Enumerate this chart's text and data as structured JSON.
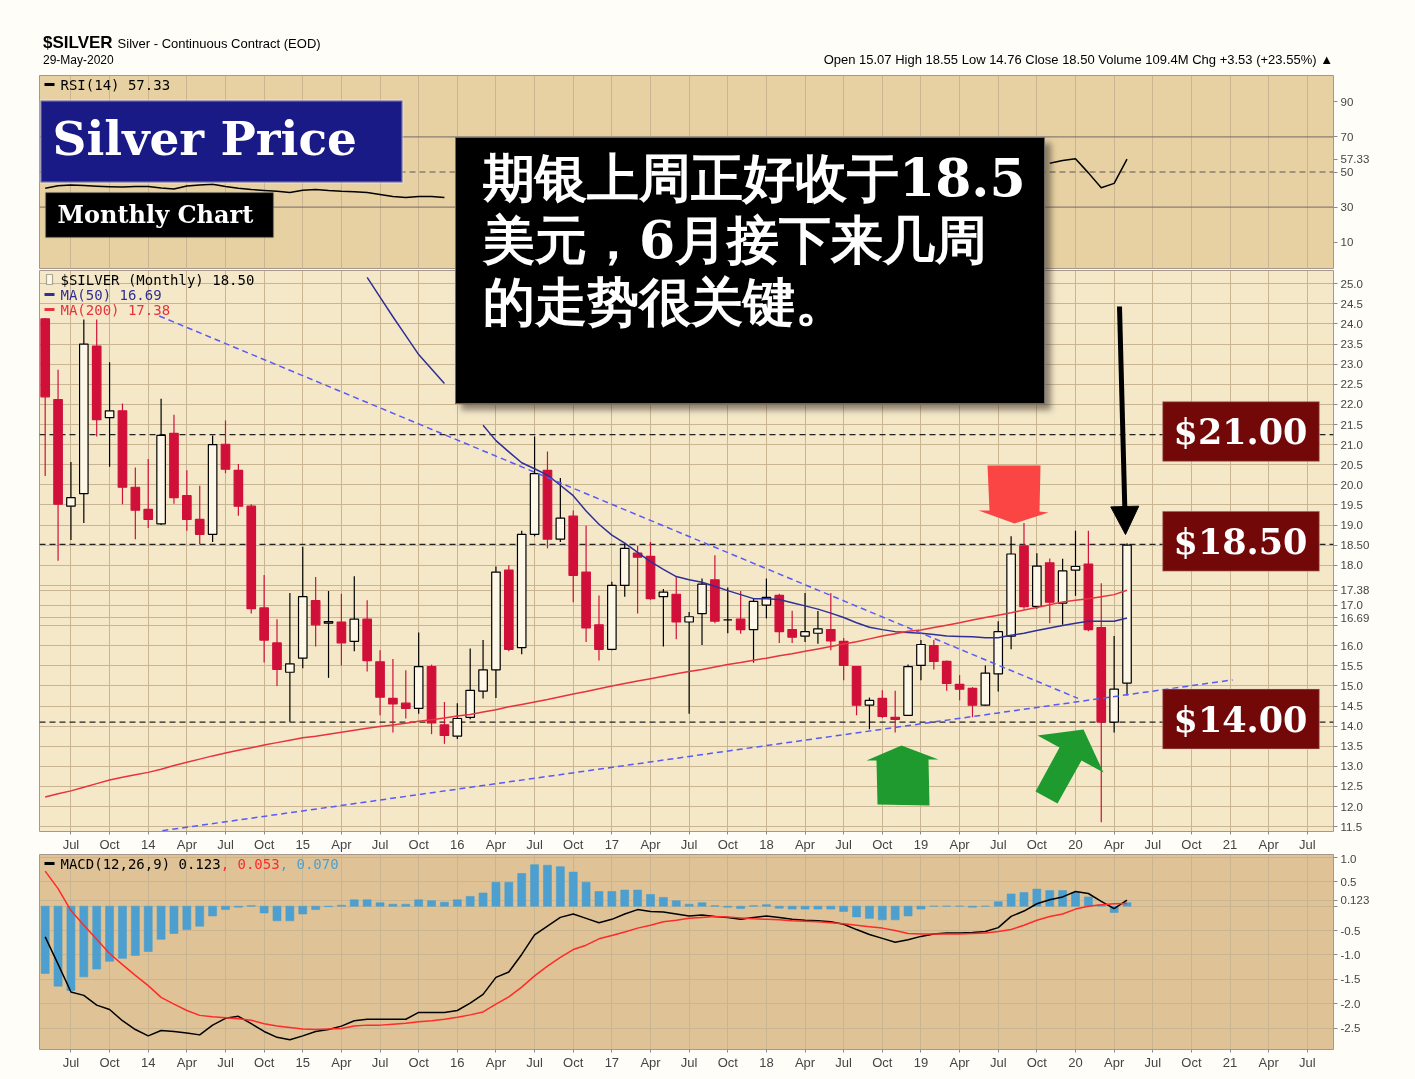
{
  "chart_data": [
    {
      "type": "line",
      "title": "Silver Price",
      "subtitle": "Monthly Chart",
      "annotations": [
        "$SILVER",
        "Silver - Continuous Contract (EOD)",
        "29-May-2020",
        "Open 15.07 High 18.55 Low 14.76 Close 18.50 Volume 109.4M Chg +3.53 (+23.55%) ▲",
        "期银上周正好收于18.5美元，6月接下来几周的走势很关键。"
      ],
      "x": [
        "2013-05",
        "2013-06",
        "2013-07",
        "2013-08",
        "2013-09",
        "2013-10",
        "2013-11",
        "2013-12",
        "2014-01",
        "2014-02",
        "2014-03",
        "2014-04",
        "2014-05",
        "2014-06",
        "2014-07",
        "2014-08",
        "2014-09",
        "2014-10",
        "2014-11",
        "2014-12",
        "2015-01",
        "2015-02",
        "2015-03",
        "2015-04",
        "2015-05",
        "2015-06",
        "2015-07",
        "2015-08",
        "2015-09",
        "2015-10",
        "2015-11",
        "2015-12",
        "2016-01",
        "2016-02",
        "2016-03",
        "2016-04",
        "2016-05",
        "2016-06",
        "2016-07",
        "2016-08",
        "2016-09",
        "2016-10",
        "2016-11",
        "2016-12",
        "2017-01",
        "2017-02",
        "2017-03",
        "2017-04",
        "2017-05",
        "2017-06",
        "2017-07",
        "2017-08",
        "2017-09",
        "2017-10",
        "2017-11",
        "2017-12",
        "2018-01",
        "2018-02",
        "2018-03",
        "2018-04",
        "2018-05",
        "2018-06",
        "2018-07",
        "2018-08",
        "2018-09",
        "2018-10",
        "2018-11",
        "2018-12",
        "2019-01",
        "2019-02",
        "2019-03",
        "2019-04",
        "2019-05",
        "2019-06",
        "2019-07",
        "2019-08",
        "2019-09",
        "2019-10",
        "2019-11",
        "2019-12",
        "2020-01",
        "2020-02",
        "2020-03",
        "2020-04",
        "2020-05"
      ],
      "series": [
        {
          "name": "RSI(14) 57.33",
          "color": "#000000",
          "values": [
            40.8,
            42.1,
            42.6,
            42.3,
            41.9,
            41.6,
            41.4,
            41.7,
            41.8,
            40.9,
            40.3,
            42.0,
            42.6,
            43.0,
            41.8,
            40.8,
            40.0,
            39.5,
            39.0,
            38.3,
            39.6,
            40.0,
            39.4,
            39.0,
            38.8,
            38.3,
            37.2,
            36.0,
            35.5,
            36.1,
            36.0,
            35.5,
            null,
            null,
            null,
            null,
            null,
            null,
            null,
            null,
            null,
            null,
            null,
            null,
            null,
            null,
            null,
            null,
            null,
            null,
            null,
            null,
            null,
            null,
            null,
            null,
            null,
            null,
            null,
            null,
            null,
            null,
            null,
            null,
            null,
            null,
            null,
            null,
            null,
            null,
            null,
            null,
            null,
            null,
            null,
            null,
            null,
            null,
            55.0,
            56.5,
            57.5,
            49.5,
            41.0,
            43.5,
            57.33
          ]
        }
      ],
      "xlim": [
        "2013-04-18",
        "2021-09-02"
      ],
      "xticks": [
        {
          "value": "2013-07",
          "label": null
        },
        {
          "value": "2013-10",
          "label": null
        },
        {
          "value": "2014-01",
          "label": null
        },
        {
          "value": "2014-04",
          "label": null
        },
        {
          "value": "2014-07",
          "label": null
        },
        {
          "value": "2014-10",
          "label": null
        },
        {
          "value": "2015-01",
          "label": null
        },
        {
          "value": "2015-04",
          "label": null
        },
        {
          "value": "2015-07",
          "label": null
        },
        {
          "value": "2015-10",
          "label": null
        },
        {
          "value": "2016-01",
          "label": null
        },
        {
          "value": "2016-04",
          "label": null
        },
        {
          "value": "2016-07",
          "label": null
        },
        {
          "value": "2016-10",
          "label": null
        },
        {
          "value": "2017-01",
          "label": null
        },
        {
          "value": "2017-04",
          "label": null
        },
        {
          "value": "2017-07",
          "label": null
        },
        {
          "value": "2017-10",
          "label": null
        },
        {
          "value": "2018-01",
          "label": null
        },
        {
          "value": "2018-04",
          "label": null
        },
        {
          "value": "2018-07",
          "label": null
        },
        {
          "value": "2018-10",
          "label": null
        },
        {
          "value": "2019-01",
          "label": null
        },
        {
          "value": "2019-04",
          "label": null
        },
        {
          "value": "2019-07",
          "label": null
        },
        {
          "value": "2019-10",
          "label": null
        },
        {
          "value": "2020-01",
          "label": null
        },
        {
          "value": "2020-04",
          "label": null
        },
        {
          "value": "2020-07",
          "label": null
        },
        {
          "value": "2020-10",
          "label": null
        },
        {
          "value": "2021-01",
          "label": null
        },
        {
          "value": "2021-04",
          "label": null
        },
        {
          "value": "2021-07",
          "label": null
        }
      ],
      "ylim": [
        -5,
        105
      ],
      "yticks": [
        10,
        30,
        50,
        57.33,
        70,
        90
      ],
      "ref_lines": [
        {
          "axis": "y",
          "value": 70,
          "color": "#8b7d74"
        },
        {
          "axis": "y",
          "value": 50,
          "color": "#8b7d74",
          "line_style": "dashed"
        },
        {
          "axis": "y",
          "value": 30,
          "color": "#8b7d74"
        }
      ],
      "tick_labels": "y",
      "grid": "x",
      "legend": "top left"
    },
    {
      "type": "candlestick",
      "annotations": [
        "$21.00",
        "$18.50",
        "$14.00"
      ],
      "x": [
        "2013-05",
        "2013-06",
        "2013-07",
        "2013-08",
        "2013-09",
        "2013-10",
        "2013-11",
        "2013-12",
        "2014-01",
        "2014-02",
        "2014-03",
        "2014-04",
        "2014-05",
        "2014-06",
        "2014-07",
        "2014-08",
        "2014-09",
        "2014-10",
        "2014-11",
        "2014-12",
        "2015-01",
        "2015-02",
        "2015-03",
        "2015-04",
        "2015-05",
        "2015-06",
        "2015-07",
        "2015-08",
        "2015-09",
        "2015-10",
        "2015-11",
        "2015-12",
        "2016-01",
        "2016-02",
        "2016-03",
        "2016-04",
        "2016-05",
        "2016-06",
        "2016-07",
        "2016-08",
        "2016-09",
        "2016-10",
        "2016-11",
        "2016-12",
        "2017-01",
        "2017-02",
        "2017-03",
        "2017-04",
        "2017-05",
        "2017-06",
        "2017-07",
        "2017-08",
        "2017-09",
        "2017-10",
        "2017-11",
        "2017-12",
        "2018-01",
        "2018-02",
        "2018-03",
        "2018-04",
        "2018-05",
        "2018-06",
        "2018-07",
        "2018-08",
        "2018-09",
        "2018-10",
        "2018-11",
        "2018-12",
        "2019-01",
        "2019-02",
        "2019-03",
        "2019-04",
        "2019-05",
        "2019-06",
        "2019-07",
        "2019-08",
        "2019-09",
        "2019-10",
        "2019-11",
        "2019-12",
        "2020-01",
        "2020-02",
        "2020-03",
        "2020-04",
        "2020-05"
      ],
      "series": [
        {
          "name": "$SILVER (Monthly) 18.50",
          "type": "candlestick",
          "color": "#000000",
          "colors": [
            "#d1103a",
            "#d1103a",
            "#000000",
            "#000000",
            "#d1103a",
            "#000000",
            "#d1103a",
            "#d1103a",
            "#d1103a",
            "#000000",
            "#d1103a",
            "#d1103a",
            "#d1103a",
            "#000000",
            "#d1103a",
            "#d1103a",
            "#d1103a",
            "#d1103a",
            "#d1103a",
            "#000000",
            "#000000",
            "#d1103a",
            "#000000",
            "#d1103a",
            "#000000",
            "#d1103a",
            "#d1103a",
            "#d1103a",
            "#d1103a",
            "#000000",
            "#d1103a",
            "#d1103a",
            "#000000",
            "#000000",
            "#000000",
            "#000000",
            "#d1103a",
            "#000000",
            "#000000",
            "#d1103a",
            "#000000",
            "#d1103a",
            "#d1103a",
            "#d1103a",
            "#000000",
            "#000000",
            "#d1103a",
            "#d1103a",
            "#000000",
            "#d1103a",
            "#000000",
            "#000000",
            "#d1103a",
            "#000000",
            "#d1103a",
            "#000000",
            "#000000",
            "#d1103a",
            "#d1103a",
            "#000000",
            "#000000",
            "#d1103a",
            "#d1103a",
            "#d1103a",
            "#000000",
            "#d1103a",
            "#d1103a",
            "#000000",
            "#000000",
            "#d1103a",
            "#d1103a",
            "#d1103a",
            "#d1103a",
            "#000000",
            "#000000",
            "#000000",
            "#d1103a",
            "#000000",
            "#d1103a",
            "#000000",
            "#000000",
            "#d1103a",
            "#d1103a",
            "#000000",
            "#000000"
          ],
          "ohlc": [
            [
              24.13,
              24.15,
              20.22,
              22.19
            ],
            [
              22.12,
              22.86,
              18.11,
              19.52
            ],
            [
              19.47,
              20.57,
              18.63,
              19.68
            ],
            [
              19.78,
              24.11,
              19.05,
              23.5
            ],
            [
              23.45,
              24.11,
              21.2,
              21.62
            ],
            [
              21.67,
              23.05,
              20.45,
              21.84
            ],
            [
              21.84,
              22.02,
              19.52,
              19.94
            ],
            [
              19.94,
              20.43,
              18.65,
              19.37
            ],
            [
              19.39,
              20.64,
              18.93,
              19.14
            ],
            [
              19.03,
              22.14,
              19.0,
              21.23
            ],
            [
              21.28,
              21.74,
              19.53,
              19.68
            ],
            [
              19.73,
              20.36,
              18.86,
              19.14
            ],
            [
              19.14,
              19.98,
              18.53,
              18.77
            ],
            [
              18.77,
              21.23,
              18.58,
              21.0
            ],
            [
              21.01,
              21.6,
              20.29,
              20.39
            ],
            [
              20.36,
              20.52,
              19.23,
              19.47
            ],
            [
              19.47,
              19.52,
              16.8,
              16.92
            ],
            [
              16.94,
              17.76,
              15.58,
              16.14
            ],
            [
              16.07,
              16.66,
              15.0,
              15.41
            ],
            [
              15.34,
              17.31,
              14.11,
              15.55
            ],
            [
              15.69,
              18.46,
              15.44,
              17.22
            ],
            [
              17.12,
              17.71,
              15.98,
              16.52
            ],
            [
              16.56,
              17.36,
              15.2,
              16.6
            ],
            [
              16.59,
              17.29,
              15.51,
              16.07
            ],
            [
              16.11,
              17.73,
              15.86,
              16.66
            ],
            [
              16.66,
              17.13,
              15.36,
              15.63
            ],
            [
              15.6,
              15.89,
              14.27,
              14.72
            ],
            [
              14.69,
              15.67,
              13.84,
              14.55
            ],
            [
              14.57,
              15.39,
              14.19,
              14.44
            ],
            [
              14.44,
              16.33,
              14.31,
              15.48
            ],
            [
              15.48,
              15.53,
              13.8,
              14.08
            ],
            [
              14.03,
              14.6,
              13.56,
              13.77
            ],
            [
              13.75,
              14.57,
              13.68,
              14.19
            ],
            [
              14.22,
              15.93,
              14.17,
              14.89
            ],
            [
              14.87,
              16.14,
              14.69,
              15.4
            ],
            [
              15.4,
              17.97,
              14.7,
              17.83
            ],
            [
              17.88,
              18.0,
              15.86,
              15.91
            ],
            [
              15.95,
              18.86,
              15.79,
              18.77
            ],
            [
              18.77,
              21.2,
              18.72,
              20.28
            ],
            [
              20.36,
              20.83,
              18.42,
              18.65
            ],
            [
              18.65,
              20.17,
              18.58,
              19.17
            ],
            [
              19.22,
              19.36,
              17.08,
              17.75
            ],
            [
              17.83,
              18.98,
              16.09,
              16.44
            ],
            [
              16.52,
              17.25,
              15.63,
              15.91
            ],
            [
              15.91,
              17.59,
              15.89,
              17.5
            ],
            [
              17.5,
              18.55,
              17.22,
              18.42
            ],
            [
              18.3,
              18.48,
              16.8,
              18.2
            ],
            [
              18.22,
              18.58,
              17.14,
              17.17
            ],
            [
              17.22,
              17.41,
              15.98,
              17.33
            ],
            [
              17.28,
              17.71,
              16.16,
              16.59
            ],
            [
              16.59,
              16.84,
              14.31,
              16.72
            ],
            [
              16.8,
              17.67,
              16.02,
              17.53
            ],
            [
              17.64,
              18.25,
              16.56,
              16.61
            ],
            [
              16.64,
              17.45,
              16.31,
              16.64
            ],
            [
              16.66,
              17.36,
              16.3,
              16.4
            ],
            [
              16.4,
              17.17,
              15.58,
              17.1
            ],
            [
              17.01,
              17.67,
              16.68,
              17.2
            ],
            [
              17.25,
              17.29,
              16.07,
              16.35
            ],
            [
              16.4,
              16.87,
              16.07,
              16.21
            ],
            [
              16.24,
              17.31,
              16.09,
              16.35
            ],
            [
              16.31,
              16.86,
              16.05,
              16.42
            ],
            [
              16.4,
              17.31,
              15.89,
              16.12
            ],
            [
              16.11,
              16.19,
              15.14,
              15.51
            ],
            [
              15.48,
              15.48,
              14.27,
              14.52
            ],
            [
              14.52,
              14.71,
              13.92,
              14.64
            ],
            [
              14.69,
              14.89,
              14.2,
              14.24
            ],
            [
              14.22,
              14.88,
              13.84,
              14.17
            ],
            [
              14.27,
              15.53,
              14.25,
              15.48
            ],
            [
              15.51,
              16.14,
              15.14,
              16.03
            ],
            [
              16.0,
              16.14,
              15.41,
              15.61
            ],
            [
              15.61,
              15.63,
              14.88,
              15.06
            ],
            [
              15.04,
              15.27,
              14.64,
              14.92
            ],
            [
              14.94,
              14.97,
              14.22,
              14.52
            ],
            [
              14.52,
              15.51,
              14.5,
              15.32
            ],
            [
              15.3,
              16.61,
              14.86,
              16.35
            ],
            [
              16.24,
              18.72,
              15.91,
              18.28
            ],
            [
              18.48,
              19.05,
              16.92,
              16.97
            ],
            [
              16.98,
              18.3,
              16.92,
              17.98
            ],
            [
              18.06,
              18.17,
              16.56,
              17.08
            ],
            [
              17.06,
              18.16,
              16.52,
              17.86
            ],
            [
              17.88,
              18.86,
              17.24,
              17.97
            ],
            [
              18.03,
              18.86,
              16.36,
              16.4
            ],
            [
              16.45,
              17.55,
              11.61,
              14.1
            ],
            [
              14.1,
              16.24,
              13.84,
              14.92
            ],
            [
              15.07,
              18.55,
              14.76,
              18.5
            ]
          ]
        },
        {
          "name": "MA(50) 16.69",
          "type": "line",
          "color": "#2f2f96",
          "values": [
            null,
            null,
            null,
            null,
            null,
            null,
            null,
            null,
            null,
            null,
            null,
            null,
            null,
            null,
            null,
            null,
            null,
            null,
            null,
            null,
            null,
            null,
            null,
            null,
            null,
            25.16,
            24.67,
            24.18,
            23.71,
            23.24,
            22.88,
            22.52,
            null,
            null,
            21.48,
            21.1,
            20.82,
            20.55,
            20.4,
            20.24,
            19.99,
            19.73,
            19.35,
            19.02,
            18.75,
            18.55,
            18.32,
            18.09,
            17.9,
            17.72,
            17.64,
            17.58,
            17.48,
            17.37,
            17.27,
            17.17,
            17.17,
            17.15,
            17.07,
            16.99,
            16.91,
            16.81,
            16.7,
            16.57,
            16.46,
            16.4,
            16.35,
            16.33,
            16.31,
            16.28,
            16.24,
            16.23,
            16.22,
            16.2,
            16.2,
            16.26,
            16.31,
            16.38,
            16.44,
            16.5,
            16.56,
            16.61,
            16.61,
            16.61,
            16.69
          ]
        },
        {
          "name": "MA(200) 17.38",
          "type": "line",
          "color": "#e8323c",
          "values": [
            12.24,
            12.32,
            12.39,
            12.48,
            12.57,
            12.66,
            12.73,
            12.79,
            12.85,
            12.93,
            13.02,
            13.1,
            13.18,
            13.26,
            13.33,
            13.4,
            13.46,
            13.53,
            13.59,
            13.65,
            13.71,
            13.75,
            13.8,
            13.85,
            13.9,
            13.95,
            13.99,
            14.03,
            14.07,
            14.12,
            14.16,
            14.2,
            14.25,
            14.29,
            14.35,
            14.41,
            14.48,
            14.54,
            14.6,
            14.66,
            14.73,
            14.8,
            14.86,
            14.93,
            15.0,
            15.06,
            15.12,
            15.18,
            15.24,
            15.3,
            15.36,
            15.41,
            15.47,
            15.53,
            15.58,
            15.64,
            15.69,
            15.75,
            15.8,
            15.86,
            15.92,
            15.98,
            16.04,
            16.1,
            16.17,
            16.24,
            16.3,
            16.36,
            16.39,
            16.45,
            16.51,
            16.57,
            16.64,
            16.7,
            16.76,
            16.82,
            16.89,
            16.95,
            17.02,
            17.09,
            17.13,
            17.17,
            17.22,
            17.27,
            17.38
          ]
        },
        {
          "type": "line",
          "color": "#5a5af7",
          "line_style": "dashed",
          "x": [
            "2014-01-27",
            "2020-01-07"
          ],
          "values": [
            24.2,
            14.69
          ]
        },
        {
          "type": "line",
          "color": "#5a5af7",
          "line_style": "dashed",
          "x": [
            "2014-02-04",
            "2021-01-07"
          ],
          "values": [
            11.4,
            15.15
          ]
        }
      ],
      "xlim": [
        "2013-04-18",
        "2021-09-02"
      ],
      "xticks": [
        {
          "value": "2013-07",
          "label": "Jul"
        },
        {
          "value": "2013-10",
          "label": "Oct"
        },
        {
          "value": "2014-01",
          "label": "14"
        },
        {
          "value": "2014-04",
          "label": "Apr"
        },
        {
          "value": "2014-07",
          "label": "Jul"
        },
        {
          "value": "2014-10",
          "label": "Oct"
        },
        {
          "value": "2015-01",
          "label": "15"
        },
        {
          "value": "2015-04",
          "label": "Apr"
        },
        {
          "value": "2015-07",
          "label": "Jul"
        },
        {
          "value": "2015-10",
          "label": "Oct"
        },
        {
          "value": "2016-01",
          "label": "16"
        },
        {
          "value": "2016-04",
          "label": "Apr"
        },
        {
          "value": "2016-07",
          "label": "Jul"
        },
        {
          "value": "2016-10",
          "label": "Oct"
        },
        {
          "value": "2017-01",
          "label": "17"
        },
        {
          "value": "2017-04",
          "label": "Apr"
        },
        {
          "value": "2017-07",
          "label": "Jul"
        },
        {
          "value": "2017-10",
          "label": "Oct"
        },
        {
          "value": "2018-01",
          "label": "18"
        },
        {
          "value": "2018-04",
          "label": "Apr"
        },
        {
          "value": "2018-07",
          "label": "Jul"
        },
        {
          "value": "2018-10",
          "label": "Oct"
        },
        {
          "value": "2019-01",
          "label": "19"
        },
        {
          "value": "2019-04",
          "label": "Apr"
        },
        {
          "value": "2019-07",
          "label": "Jul"
        },
        {
          "value": "2019-10",
          "label": "Oct"
        },
        {
          "value": "2020-01",
          "label": "20"
        },
        {
          "value": "2020-04",
          "label": "Apr"
        },
        {
          "value": "2020-07",
          "label": "Jul"
        },
        {
          "value": "2020-10",
          "label": "Oct"
        },
        {
          "value": "2021-01",
          "label": "21"
        },
        {
          "value": "2021-04",
          "label": "Apr"
        },
        {
          "value": "2021-07",
          "label": "Jul"
        }
      ],
      "ylim": [
        11.38,
        25.33
      ],
      "yticks": [
        11.5,
        {
          "value": 12,
          "label": "12.0"
        },
        12.5,
        {
          "value": 13,
          "label": "13.0"
        },
        13.5,
        {
          "value": 14,
          "label": "14.0"
        },
        14.5,
        {
          "value": 15,
          "label": "15.0"
        },
        15.5,
        {
          "value": 16,
          "label": "16.0"
        },
        {
          "value": 16.5,
          "label": null
        },
        16.69,
        {
          "value": 17,
          "label": "17.0"
        },
        17.38,
        {
          "value": 17.5,
          "label": null
        },
        {
          "value": 18,
          "label": "18.0"
        },
        {
          "value": 18.5,
          "label": "18.50"
        },
        {
          "value": 19,
          "label": "19.0"
        },
        19.5,
        {
          "value": 20,
          "label": "20.0"
        },
        20.5,
        {
          "value": 21,
          "label": "21.0"
        },
        21.5,
        {
          "value": 22,
          "label": "22.0"
        },
        22.5,
        {
          "value": 23,
          "label": "23.0"
        },
        23.5,
        {
          "value": 24,
          "label": "24.0"
        },
        24.5,
        {
          "value": 25,
          "label": "25.0"
        }
      ],
      "ref_lines": [
        {
          "axis": "y",
          "value": 21.25,
          "color": "#222222",
          "line_style": "dashed"
        },
        {
          "axis": "y",
          "value": 18.52,
          "color": "#222222",
          "line_style": "dashed"
        },
        {
          "axis": "y",
          "value": 14.1,
          "color": "#222222",
          "line_style": "dashed"
        }
      ],
      "grid": true,
      "legend": "top left"
    },
    {
      "type": "line",
      "x": [
        "2013-05",
        "2013-06",
        "2013-07",
        "2013-08",
        "2013-09",
        "2013-10",
        "2013-11",
        "2013-12",
        "2014-01",
        "2014-02",
        "2014-03",
        "2014-04",
        "2014-05",
        "2014-06",
        "2014-07",
        "2014-08",
        "2014-09",
        "2014-10",
        "2014-11",
        "2014-12",
        "2015-01",
        "2015-02",
        "2015-03",
        "2015-04",
        "2015-05",
        "2015-06",
        "2015-07",
        "2015-08",
        "2015-09",
        "2015-10",
        "2015-11",
        "2015-12",
        "2016-01",
        "2016-02",
        "2016-03",
        "2016-04",
        "2016-05",
        "2016-06",
        "2016-07",
        "2016-08",
        "2016-09",
        "2016-10",
        "2016-11",
        "2016-12",
        "2017-01",
        "2017-02",
        "2017-03",
        "2017-04",
        "2017-05",
        "2017-06",
        "2017-07",
        "2017-08",
        "2017-09",
        "2017-10",
        "2017-11",
        "2017-12",
        "2018-01",
        "2018-02",
        "2018-03",
        "2018-04",
        "2018-05",
        "2018-06",
        "2018-07",
        "2018-08",
        "2018-09",
        "2018-10",
        "2018-11",
        "2018-12",
        "2019-01",
        "2019-02",
        "2019-03",
        "2019-04",
        "2019-05",
        "2019-06",
        "2019-07",
        "2019-08",
        "2019-09",
        "2019-10",
        "2019-11",
        "2019-12",
        "2020-01",
        "2020-02",
        "2020-03",
        "2020-04",
        "2020-05"
      ],
      "series": [
        {
          "name": "MACD(12,26,9) 0.123",
          "color": "#000000",
          "values": [
            -0.63,
            -1.19,
            -1.76,
            -1.83,
            -2.03,
            -2.12,
            -2.35,
            -2.53,
            -2.66,
            -2.55,
            -2.57,
            -2.6,
            -2.64,
            -2.44,
            -2.3,
            -2.26,
            -2.41,
            -2.57,
            -2.69,
            -2.74,
            -2.66,
            -2.57,
            -2.53,
            -2.46,
            -2.35,
            -2.32,
            -2.32,
            -2.32,
            -2.32,
            -2.18,
            -2.18,
            -2.18,
            -2.14,
            -1.99,
            -1.81,
            -1.46,
            -1.35,
            -0.99,
            -0.59,
            -0.41,
            -0.23,
            -0.16,
            -0.25,
            -0.34,
            -0.27,
            -0.16,
            -0.07,
            -0.11,
            -0.12,
            -0.16,
            -0.2,
            -0.18,
            -0.21,
            -0.23,
            -0.27,
            -0.23,
            -0.2,
            -0.23,
            -0.27,
            -0.29,
            -0.3,
            -0.32,
            -0.37,
            -0.48,
            -0.58,
            -0.66,
            -0.74,
            -0.69,
            -0.62,
            -0.57,
            -0.55,
            -0.55,
            -0.54,
            -0.52,
            -0.44,
            -0.21,
            -0.1,
            0.05,
            0.13,
            0.19,
            0.3,
            0.26,
            0.1,
            -0.05,
            0.123
          ]
        },
        {
          "name": ", 0.053",
          "color": "#ff2a2a",
          "values": [
            0.72,
            0.36,
            -0.09,
            -0.39,
            -0.68,
            -0.97,
            -1.2,
            -1.42,
            -1.63,
            -1.87,
            -2.01,
            -2.14,
            -2.24,
            -2.27,
            -2.29,
            -2.31,
            -2.34,
            -2.41,
            -2.46,
            -2.49,
            -2.52,
            -2.53,
            -2.52,
            -2.51,
            -2.46,
            -2.44,
            -2.44,
            -2.42,
            -2.4,
            -2.37,
            -2.35,
            -2.32,
            -2.28,
            -2.23,
            -2.17,
            -2.01,
            -1.86,
            -1.66,
            -1.43,
            -1.23,
            -1.05,
            -0.89,
            -0.8,
            -0.67,
            -0.6,
            -0.53,
            -0.45,
            -0.39,
            -0.32,
            -0.29,
            -0.25,
            -0.23,
            -0.21,
            -0.22,
            -0.24,
            -0.26,
            -0.27,
            -0.28,
            -0.3,
            -0.31,
            -0.32,
            -0.34,
            -0.36,
            -0.39,
            -0.42,
            -0.45,
            -0.5,
            -0.56,
            -0.57,
            -0.57,
            -0.57,
            -0.57,
            -0.56,
            -0.55,
            -0.52,
            -0.48,
            -0.39,
            -0.29,
            -0.21,
            -0.16,
            -0.06,
            0.0,
            0.03,
            0.05,
            0.053
          ]
        },
        {
          "name": ", 0.070",
          "type": "bar",
          "color": "#4c9fcf",
          "values": [
            -1.38,
            -1.64,
            -1.73,
            -1.45,
            -1.29,
            -1.13,
            -1.07,
            -1.01,
            -0.93,
            -0.68,
            -0.56,
            -0.48,
            -0.41,
            -0.2,
            -0.07,
            -0.02,
            0.01,
            -0.14,
            -0.3,
            -0.3,
            -0.16,
            -0.07,
            -0.01,
            0.02,
            0.13,
            0.13,
            0.07,
            0.04,
            0.04,
            0.13,
            0.11,
            0.08,
            0.13,
            0.2,
            0.27,
            0.49,
            0.49,
            0.67,
            0.85,
            0.84,
            0.81,
            0.7,
            0.49,
            0.3,
            0.3,
            0.33,
            0.33,
            0.24,
            0.18,
            0.11,
            0.04,
            0.07,
            0.01,
            -0.02,
            -0.05,
            0.01,
            0.03,
            -0.04,
            -0.06,
            -0.06,
            -0.06,
            -0.06,
            -0.11,
            -0.22,
            -0.25,
            -0.28,
            -0.28,
            -0.2,
            -0.06,
            0.0,
            0.0,
            0.0,
            -0.02,
            0.0,
            0.09,
            0.25,
            0.28,
            0.35,
            0.32,
            0.32,
            0.28,
            0.19,
            0.03,
            -0.13,
            0.07
          ]
        }
      ],
      "xlim": [
        "2013-04-18",
        "2021-09-02"
      ],
      "xticks": [
        {
          "value": "2013-07",
          "label": "Jul"
        },
        {
          "value": "2013-10",
          "label": "Oct"
        },
        {
          "value": "2014-01",
          "label": "14"
        },
        {
          "value": "2014-04",
          "label": "Apr"
        },
        {
          "value": "2014-07",
          "label": "Jul"
        },
        {
          "value": "2014-10",
          "label": "Oct"
        },
        {
          "value": "2015-01",
          "label": "15"
        },
        {
          "value": "2015-04",
          "label": "Apr"
        },
        {
          "value": "2015-07",
          "label": "Jul"
        },
        {
          "value": "2015-10",
          "label": "Oct"
        },
        {
          "value": "2016-01",
          "label": "16"
        },
        {
          "value": "2016-04",
          "label": "Apr"
        },
        {
          "value": "2016-07",
          "label": "Jul"
        },
        {
          "value": "2016-10",
          "label": "Oct"
        },
        {
          "value": "2017-01",
          "label": "17"
        },
        {
          "value": "2017-04",
          "label": "Apr"
        },
        {
          "value": "2017-07",
          "label": "Jul"
        },
        {
          "value": "2017-10",
          "label": "Oct"
        },
        {
          "value": "2018-01",
          "label": "18"
        },
        {
          "value": "2018-04",
          "label": "Apr"
        },
        {
          "value": "2018-07",
          "label": "Jul"
        },
        {
          "value": "2018-10",
          "label": "Oct"
        },
        {
          "value": "2019-01",
          "label": "19"
        },
        {
          "value": "2019-04",
          "label": "Apr"
        },
        {
          "value": "2019-07",
          "label": "Jul"
        },
        {
          "value": "2019-10",
          "label": "Oct"
        },
        {
          "value": "2020-01",
          "label": "20"
        },
        {
          "value": "2020-04",
          "label": "Apr"
        },
        {
          "value": "2020-07",
          "label": "Jul"
        },
        {
          "value": "2020-10",
          "label": "Oct"
        },
        {
          "value": "2021-01",
          "label": "21"
        },
        {
          "value": "2021-04",
          "label": "Apr"
        },
        {
          "value": "2021-07",
          "label": "Jul"
        }
      ],
      "ylim": [
        -2.94,
        1.06
      ],
      "yticks": [
        -2.5,
        {
          "value": -2,
          "label": "-2.0"
        },
        -1.5,
        {
          "value": -1,
          "label": "-1.0"
        },
        -0.5,
        {
          "value": 0,
          "label": null
        },
        0.123,
        0.5,
        {
          "value": 1,
          "label": "1.0"
        }
      ],
      "grid": true,
      "legend": "top left"
    }
  ]
}
